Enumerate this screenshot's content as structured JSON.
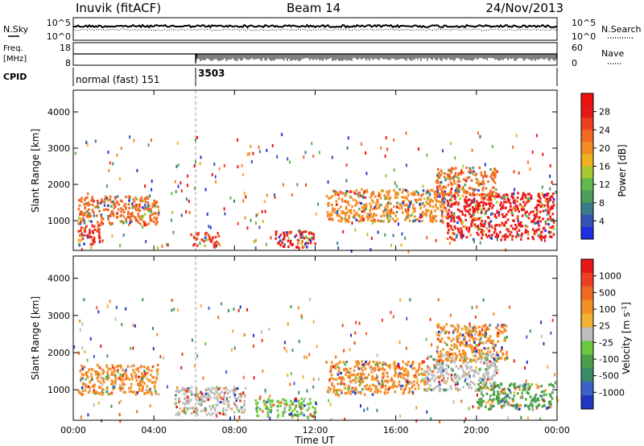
{
  "header": {
    "station": "Inuvik (fitACF)",
    "beam": "Beam 14",
    "date": "24/Nov/2013"
  },
  "panels": {
    "nsky": {
      "left_label": "N.Sky",
      "right_label": "N.Search",
      "left_ticks": [
        "10^5",
        "10^0"
      ],
      "right_ticks": [
        "10^5",
        "10^0"
      ]
    },
    "freq": {
      "left_label_1": "Freq.",
      "left_label_2": "[MHz]",
      "right_label": "Nave",
      "left_ticks": [
        "18",
        "8"
      ],
      "right_ticks": [
        "60",
        "0"
      ]
    },
    "cpid": {
      "left_label": "CPID",
      "segments": [
        {
          "label": "normal (fast) 151"
        },
        {
          "label": "3503"
        }
      ]
    }
  },
  "chart_data": [
    {
      "type": "heatmap",
      "title": "",
      "xlabel": "",
      "ylabel": "Slant Range [km]",
      "x_tick_labels": [
        "00:00",
        "04:00",
        "08:00",
        "12:00",
        "16:00",
        "20:00",
        "00:00"
      ],
      "y_tick_labels": [
        "1000",
        "2000",
        "3000",
        "4000"
      ],
      "ylim": [
        180,
        4600
      ],
      "xlim_hours": [
        0,
        24
      ],
      "colorbar": {
        "label": "Power [dB]",
        "ticks": [
          "4",
          "8",
          "12",
          "16",
          "20",
          "24",
          "28"
        ],
        "colors": [
          "#2030e0",
          "#3454b8",
          "#3a7c8a",
          "#4a9d5a",
          "#62b84a",
          "#a8c832",
          "#f0b020",
          "#f48c24",
          "#f26a22",
          "#ee4020",
          "#e81818",
          "#ee1010"
        ]
      },
      "regions": [
        {
          "t0": 0.2,
          "t1": 4.2,
          "r0": 900,
          "r1": 1700,
          "color": "#f06a22"
        },
        {
          "t0": 0.2,
          "t1": 1.3,
          "r0": 350,
          "r1": 900,
          "color": "#ee2818"
        },
        {
          "t0": 5.8,
          "t1": 7.2,
          "r0": 300,
          "r1": 700,
          "color": "#ee4020"
        },
        {
          "t0": 10.0,
          "t1": 12.0,
          "r0": 300,
          "r1": 750,
          "color": "#ee1818"
        },
        {
          "t0": 12.5,
          "t1": 18.5,
          "r0": 1000,
          "r1": 1900,
          "color": "#f48c24"
        },
        {
          "t0": 18.5,
          "t1": 23.8,
          "r0": 500,
          "r1": 1800,
          "color": "#ee1818"
        },
        {
          "t0": 18.0,
          "t1": 21.0,
          "r0": 1700,
          "r1": 2500,
          "color": "#f26a22"
        }
      ]
    },
    {
      "type": "heatmap",
      "title": "",
      "xlabel": "Time UT",
      "ylabel": "Slant Range [km]",
      "x_tick_labels": [
        "00:00",
        "04:00",
        "08:00",
        "12:00",
        "16:00",
        "20:00",
        "00:00"
      ],
      "y_tick_labels": [
        "1000",
        "2000",
        "3000",
        "4000"
      ],
      "ylim": [
        180,
        4600
      ],
      "xlim_hours": [
        0,
        24
      ],
      "colorbar": {
        "label": "Velocity [m s^-1]",
        "ticks": [
          "1000",
          "500",
          "100",
          "25",
          "-25",
          "-100",
          "-500",
          "-1000"
        ],
        "colors": [
          "#2036c0",
          "#3a62c8",
          "#3a8a6a",
          "#4aa048",
          "#6ac840",
          "#bdbdbd",
          "#f0b030",
          "#f49024",
          "#f26a22",
          "#ee4020",
          "#e81818"
        ]
      },
      "regions": [
        {
          "t0": 0.2,
          "t1": 4.2,
          "r0": 900,
          "r1": 1700,
          "color": "#f48c24"
        },
        {
          "t0": 5.0,
          "t1": 8.5,
          "r0": 350,
          "r1": 1100,
          "color": "#bdbdbd"
        },
        {
          "t0": 9.0,
          "t1": 12.0,
          "r0": 300,
          "r1": 800,
          "color": "#6ac840"
        },
        {
          "t0": 12.5,
          "t1": 17.5,
          "r0": 900,
          "r1": 1800,
          "color": "#f48c24"
        },
        {
          "t0": 17.5,
          "t1": 21.0,
          "r0": 1000,
          "r1": 2000,
          "color": "#bdbdbd"
        },
        {
          "t0": 20.0,
          "t1": 23.8,
          "r0": 500,
          "r1": 1200,
          "color": "#4aa048"
        },
        {
          "t0": 18.0,
          "t1": 21.5,
          "r0": 1800,
          "r1": 2800,
          "color": "#f49024"
        }
      ]
    }
  ]
}
